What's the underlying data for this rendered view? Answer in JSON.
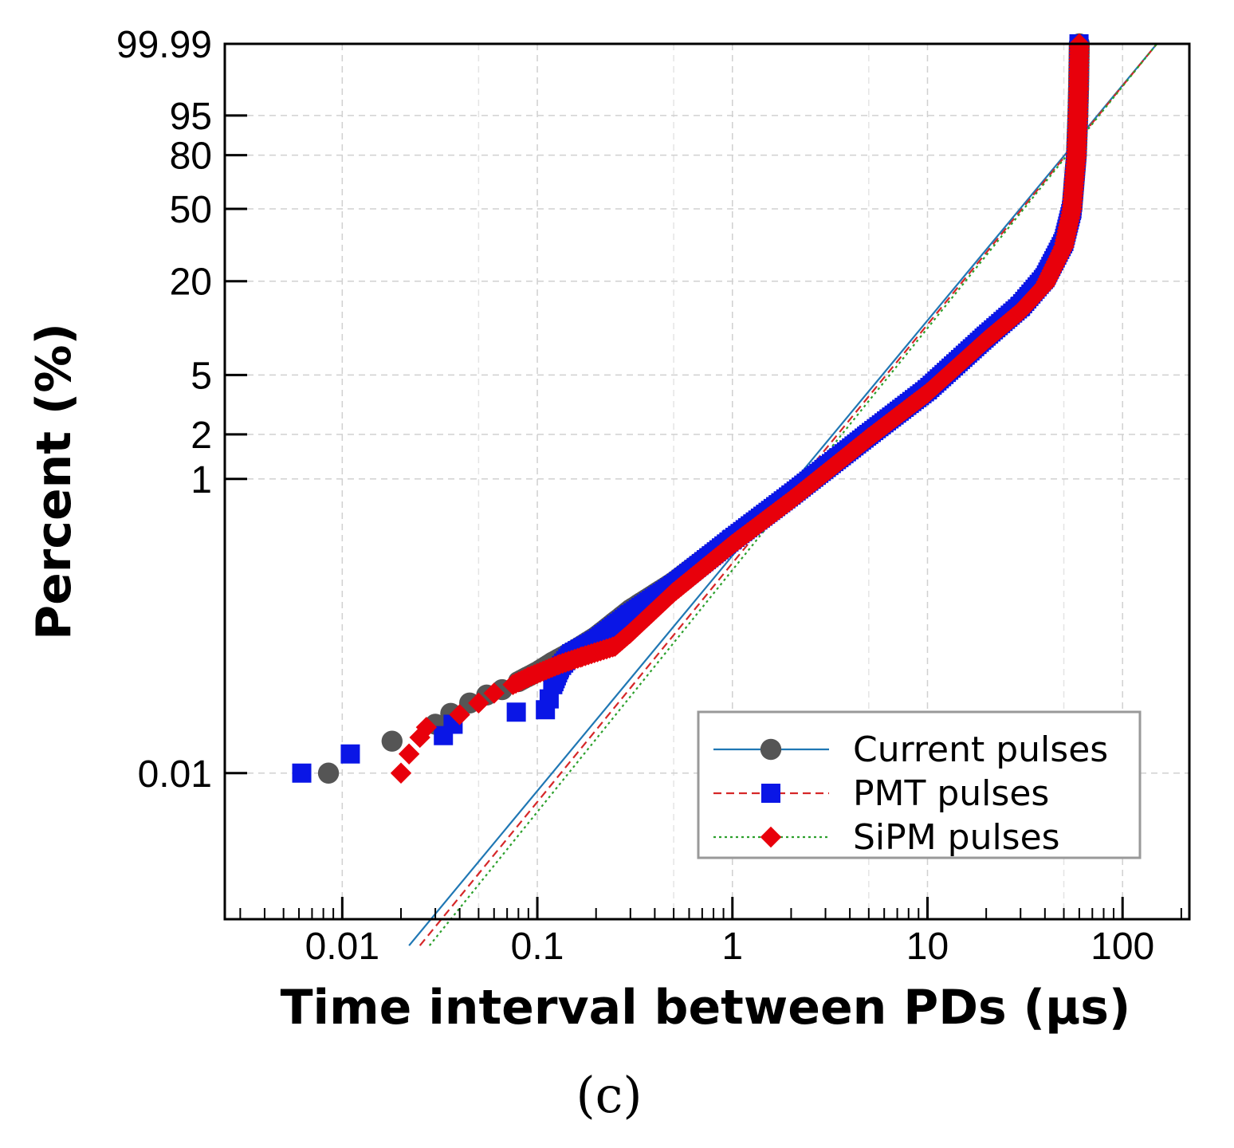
{
  "chart_data": {
    "type": "scatter",
    "subtype": "weibull_probability_plot",
    "title": "",
    "xlabel": "Time interval between PDs (µs)",
    "ylabel": "Percent (%)",
    "panel_label": "(c)",
    "x_scale": "log",
    "xlim": [
      0.0025,
      220
    ],
    "x_ticks": [
      0.01,
      0.1,
      1,
      10,
      100
    ],
    "x_tick_labels": [
      "0.01",
      "0.1",
      "1",
      "10",
      "100"
    ],
    "y_scale": "weibull_probability",
    "y_ticks": [
      0.01,
      1,
      2,
      5,
      20,
      50,
      80,
      95,
      99.99
    ],
    "y_tick_labels": [
      "0.01",
      "1",
      "2",
      "5",
      "20",
      "50",
      "80",
      "95",
      "99.99"
    ],
    "ylim_log_log_units": [
      -11.5,
      2.22
    ],
    "grid": true,
    "legend_position": "lower-right",
    "series": [
      {
        "name": "Current pulses",
        "marker": "circle",
        "marker_color": "#555555",
        "line_color": "#1f77b4",
        "line_style": "solid",
        "points": [
          [
            0.0085,
            0.01
          ],
          [
            0.018,
            0.0165
          ],
          [
            0.03,
            0.0215
          ],
          [
            0.036,
            0.0255
          ],
          [
            0.045,
            0.03
          ],
          [
            0.055,
            0.034
          ],
          [
            0.066,
            0.037
          ],
          [
            0.08,
            0.042
          ],
          [
            0.1,
            0.049
          ],
          [
            0.12,
            0.057
          ],
          [
            0.15,
            0.067
          ],
          [
            0.2,
            0.085
          ],
          [
            0.3,
            0.13
          ],
          [
            0.5,
            0.2
          ],
          [
            1.0,
            0.4
          ],
          [
            2.0,
            0.77
          ],
          [
            5.0,
            2.0
          ],
          [
            10.0,
            4.0
          ],
          [
            20.0,
            9.0
          ],
          [
            30.0,
            14.0
          ],
          [
            40.0,
            20.0
          ],
          [
            50.0,
            33.0
          ],
          [
            55.0,
            50.0
          ],
          [
            58.0,
            80.0
          ],
          [
            59.0,
            95.0
          ],
          [
            59.5,
            99.0
          ],
          [
            60.0,
            99.99
          ]
        ],
        "fit": [
          [
            0.022,
            0.00067
          ],
          [
            150,
            99.99
          ]
        ]
      },
      {
        "name": "PMT pulses",
        "marker": "square",
        "marker_color": "#0a16e6",
        "line_color": "#d62728",
        "line_style": "dashed",
        "points": [
          [
            0.0062,
            0.01
          ],
          [
            0.011,
            0.0135
          ],
          [
            0.033,
            0.018
          ],
          [
            0.037,
            0.0215
          ],
          [
            0.078,
            0.026
          ],
          [
            0.11,
            0.027
          ],
          [
            0.115,
            0.032
          ],
          [
            0.12,
            0.04
          ],
          [
            0.13,
            0.052
          ],
          [
            0.15,
            0.065
          ],
          [
            0.2,
            0.08
          ],
          [
            0.3,
            0.12
          ],
          [
            0.5,
            0.19
          ],
          [
            1.0,
            0.39
          ],
          [
            2.0,
            0.78
          ],
          [
            5.0,
            2.0
          ],
          [
            10.0,
            4.0
          ],
          [
            20.0,
            9.0
          ],
          [
            30.0,
            14.0
          ],
          [
            40.0,
            21.0
          ],
          [
            50.0,
            34.0
          ],
          [
            55.0,
            50.0
          ],
          [
            58.0,
            80.0
          ],
          [
            59.0,
            95.0
          ],
          [
            59.5,
            99.0
          ],
          [
            59.8,
            99.99
          ]
        ],
        "fit": [
          [
            0.025,
            0.00067
          ],
          [
            150,
            99.99
          ]
        ]
      },
      {
        "name": "SiPM pulses",
        "marker": "diamond",
        "marker_color": "#e8000b",
        "line_color": "#2ca02c",
        "line_style": "dotted",
        "points": [
          [
            0.02,
            0.01
          ],
          [
            0.022,
            0.0135
          ],
          [
            0.025,
            0.0175
          ],
          [
            0.027,
            0.0205
          ],
          [
            0.04,
            0.025
          ],
          [
            0.05,
            0.03
          ],
          [
            0.06,
            0.035
          ],
          [
            0.075,
            0.04
          ],
          [
            0.09,
            0.045
          ],
          [
            0.13,
            0.055
          ],
          [
            0.17,
            0.062
          ],
          [
            0.25,
            0.073
          ],
          [
            0.3,
            0.09
          ],
          [
            0.5,
            0.17
          ],
          [
            1.0,
            0.36
          ],
          [
            2.0,
            0.72
          ],
          [
            5.0,
            1.9
          ],
          [
            10.0,
            3.8
          ],
          [
            20.0,
            8.5
          ],
          [
            30.0,
            13.0
          ],
          [
            40.0,
            19.0
          ],
          [
            50.0,
            32.0
          ],
          [
            55.0,
            50.0
          ],
          [
            58.0,
            80.0
          ],
          [
            59.0,
            95.0
          ],
          [
            59.5,
            99.0
          ],
          [
            60.0,
            99.99
          ]
        ],
        "fit": [
          [
            0.028,
            0.00067
          ],
          [
            150,
            99.99
          ]
        ]
      }
    ]
  }
}
